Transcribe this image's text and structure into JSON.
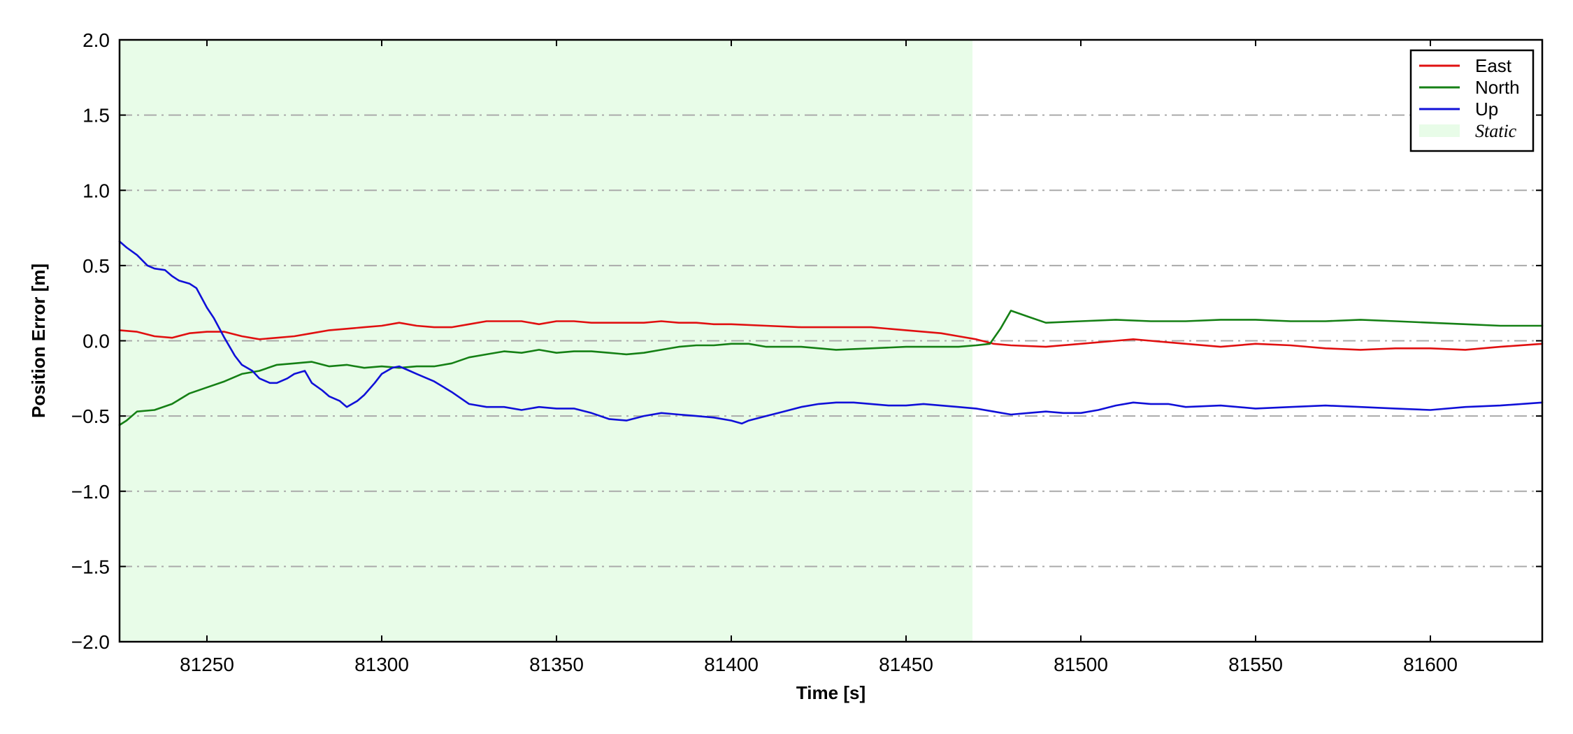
{
  "chart_data": {
    "type": "line",
    "title": "",
    "xlabel": "Time [s]",
    "ylabel": "Position Error [m]",
    "xlim": [
      81225,
      81632
    ],
    "ylim": [
      -2.0,
      2.0
    ],
    "xticks": [
      81250,
      81300,
      81350,
      81400,
      81450,
      81500,
      81550,
      81600
    ],
    "yticks": [
      -2.0,
      -1.5,
      -1.0,
      -0.5,
      0.0,
      0.5,
      1.0,
      1.5,
      2.0
    ],
    "xtick_labels": [
      "81250",
      "81300",
      "81350",
      "81400",
      "81450",
      "81500",
      "81550",
      "81600"
    ],
    "ytick_labels": [
      "−2.0",
      "−1.5",
      "−1.0",
      "−0.5",
      "0.0",
      "0.5",
      "1.0",
      "1.5",
      "2.0"
    ],
    "grid": {
      "axis": "y",
      "style": "dashdot",
      "color": "#aaaaaa"
    },
    "legend_position": "top-right",
    "shaded_regions": [
      {
        "name": "Static",
        "x_start": 81225,
        "x_end": 81469,
        "color": "#e8fce8"
      }
    ],
    "series": [
      {
        "name": "East",
        "color": "#e01010",
        "x": [
          81225,
          81230,
          81235,
          81240,
          81245,
          81250,
          81255,
          81260,
          81265,
          81270,
          81275,
          81280,
          81285,
          81290,
          81295,
          81300,
          81305,
          81310,
          81315,
          81320,
          81325,
          81330,
          81335,
          81340,
          81345,
          81350,
          81355,
          81360,
          81365,
          81370,
          81375,
          81380,
          81385,
          81390,
          81395,
          81400,
          81410,
          81420,
          81430,
          81440,
          81450,
          81460,
          81465,
          81470,
          81475,
          81480,
          81490,
          81500,
          81510,
          81515,
          81520,
          81530,
          81540,
          81550,
          81560,
          81570,
          81580,
          81590,
          81600,
          81610,
          81620,
          81632
        ],
        "y": [
          0.07,
          0.06,
          0.03,
          0.02,
          0.05,
          0.06,
          0.06,
          0.03,
          0.01,
          0.02,
          0.03,
          0.05,
          0.07,
          0.08,
          0.09,
          0.1,
          0.12,
          0.1,
          0.09,
          0.09,
          0.11,
          0.13,
          0.13,
          0.13,
          0.11,
          0.13,
          0.13,
          0.12,
          0.12,
          0.12,
          0.12,
          0.13,
          0.12,
          0.12,
          0.11,
          0.11,
          0.1,
          0.09,
          0.09,
          0.09,
          0.07,
          0.05,
          0.03,
          0.01,
          -0.02,
          -0.03,
          -0.04,
          -0.02,
          0.0,
          0.01,
          0.0,
          -0.02,
          -0.04,
          -0.02,
          -0.03,
          -0.05,
          -0.06,
          -0.05,
          -0.05,
          -0.06,
          -0.04,
          -0.02
        ]
      },
      {
        "name": "North",
        "color": "#158015",
        "x": [
          81225,
          81227,
          81230,
          81235,
          81240,
          81245,
          81250,
          81255,
          81260,
          81265,
          81270,
          81275,
          81280,
          81285,
          81290,
          81295,
          81300,
          81305,
          81310,
          81315,
          81320,
          81325,
          81330,
          81335,
          81340,
          81345,
          81350,
          81355,
          81360,
          81365,
          81370,
          81375,
          81380,
          81385,
          81390,
          81395,
          81400,
          81405,
          81410,
          81420,
          81430,
          81440,
          81450,
          81460,
          81465,
          81470,
          81474,
          81477,
          81480,
          81485,
          81490,
          81500,
          81510,
          81520,
          81530,
          81540,
          81550,
          81560,
          81570,
          81580,
          81590,
          81600,
          81610,
          81620,
          81632
        ],
        "y": [
          -0.56,
          -0.53,
          -0.47,
          -0.46,
          -0.42,
          -0.35,
          -0.31,
          -0.27,
          -0.22,
          -0.2,
          -0.16,
          -0.15,
          -0.14,
          -0.17,
          -0.16,
          -0.18,
          -0.17,
          -0.18,
          -0.17,
          -0.17,
          -0.15,
          -0.11,
          -0.09,
          -0.07,
          -0.08,
          -0.06,
          -0.08,
          -0.07,
          -0.07,
          -0.08,
          -0.09,
          -0.08,
          -0.06,
          -0.04,
          -0.03,
          -0.03,
          -0.02,
          -0.02,
          -0.04,
          -0.04,
          -0.06,
          -0.05,
          -0.04,
          -0.04,
          -0.04,
          -0.03,
          -0.02,
          0.08,
          0.2,
          0.16,
          0.12,
          0.13,
          0.14,
          0.13,
          0.13,
          0.14,
          0.14,
          0.13,
          0.13,
          0.14,
          0.13,
          0.12,
          0.11,
          0.1,
          0.1
        ]
      },
      {
        "name": "Up",
        "color": "#1010d8",
        "x": [
          81225,
          81227,
          81230,
          81233,
          81235,
          81238,
          81240,
          81242,
          81245,
          81247,
          81250,
          81252,
          81255,
          81258,
          81260,
          81263,
          81265,
          81268,
          81270,
          81273,
          81275,
          81278,
          81280,
          81283,
          81285,
          81288,
          81290,
          81293,
          81295,
          81298,
          81300,
          81303,
          81305,
          81308,
          81310,
          81315,
          81320,
          81325,
          81330,
          81335,
          81340,
          81345,
          81350,
          81355,
          81360,
          81365,
          81370,
          81375,
          81380,
          81385,
          81390,
          81395,
          81400,
          81403,
          81405,
          81410,
          81415,
          81420,
          81425,
          81430,
          81435,
          81440,
          81445,
          81450,
          81455,
          81460,
          81465,
          81470,
          81475,
          81480,
          81485,
          81490,
          81495,
          81500,
          81505,
          81510,
          81515,
          81520,
          81525,
          81530,
          81540,
          81550,
          81560,
          81570,
          81580,
          81590,
          81600,
          81610,
          81620,
          81632
        ],
        "y": [
          0.66,
          0.62,
          0.57,
          0.5,
          0.48,
          0.47,
          0.43,
          0.4,
          0.38,
          0.35,
          0.22,
          0.15,
          0.02,
          -0.1,
          -0.16,
          -0.2,
          -0.25,
          -0.28,
          -0.28,
          -0.25,
          -0.22,
          -0.2,
          -0.28,
          -0.33,
          -0.37,
          -0.4,
          -0.44,
          -0.4,
          -0.36,
          -0.28,
          -0.22,
          -0.18,
          -0.17,
          -0.2,
          -0.22,
          -0.27,
          -0.34,
          -0.42,
          -0.44,
          -0.44,
          -0.46,
          -0.44,
          -0.45,
          -0.45,
          -0.48,
          -0.52,
          -0.53,
          -0.5,
          -0.48,
          -0.49,
          -0.5,
          -0.51,
          -0.53,
          -0.55,
          -0.53,
          -0.5,
          -0.47,
          -0.44,
          -0.42,
          -0.41,
          -0.41,
          -0.42,
          -0.43,
          -0.43,
          -0.42,
          -0.43,
          -0.44,
          -0.45,
          -0.47,
          -0.49,
          -0.48,
          -0.47,
          -0.48,
          -0.48,
          -0.46,
          -0.43,
          -0.41,
          -0.42,
          -0.42,
          -0.44,
          -0.43,
          -0.45,
          -0.44,
          -0.43,
          -0.44,
          -0.45,
          -0.46,
          -0.44,
          -0.43,
          -0.41
        ]
      }
    ],
    "legend": [
      {
        "label": "East",
        "kind": "line",
        "color": "#e01010"
      },
      {
        "label": "North",
        "kind": "line",
        "color": "#158015"
      },
      {
        "label": "Up",
        "kind": "line",
        "color": "#1010d8"
      },
      {
        "label": "Static",
        "kind": "patch",
        "color": "#e8fce8",
        "italic": true
      }
    ]
  }
}
